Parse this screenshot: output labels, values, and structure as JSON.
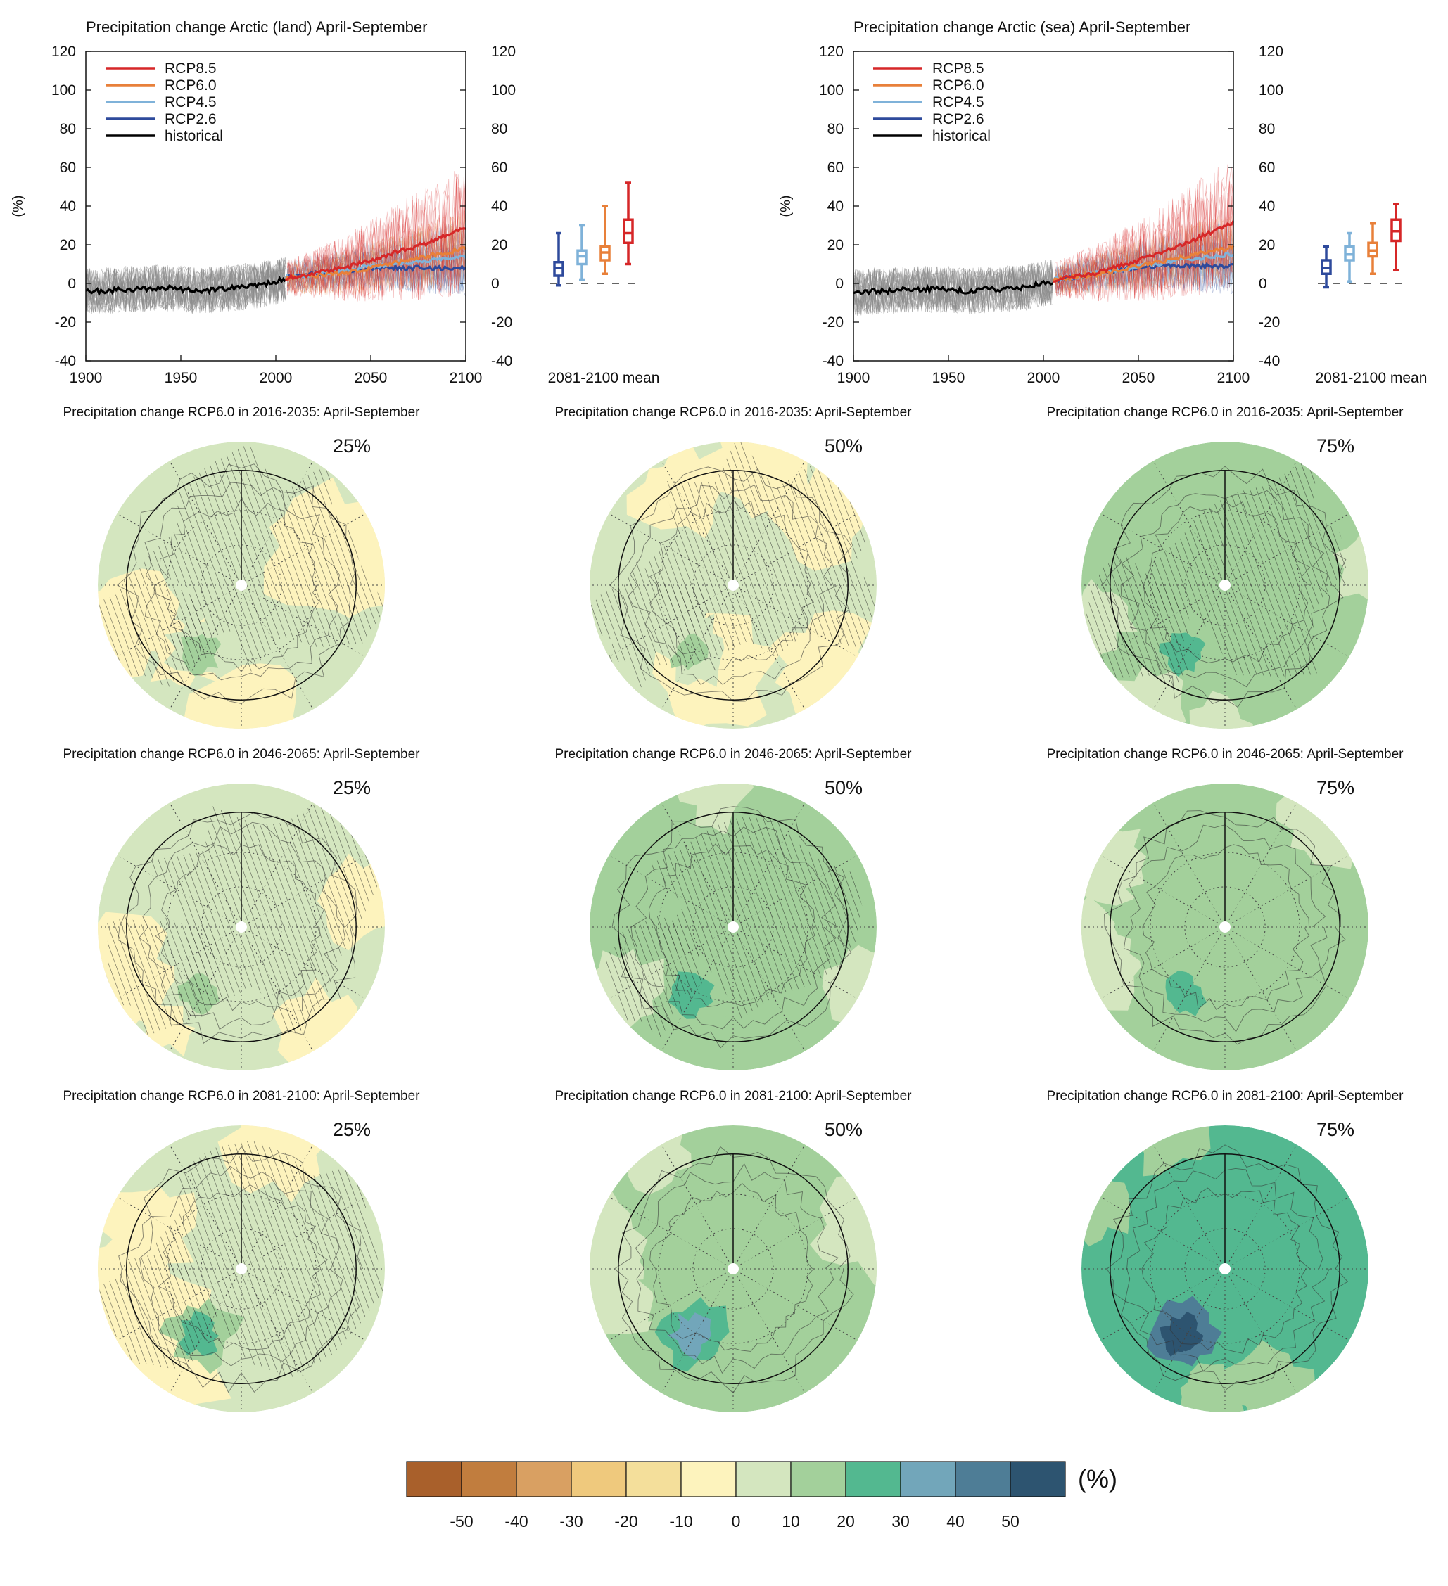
{
  "chart_data": [
    {
      "type": "line",
      "title": "Precipitation change Arctic (land) April-September",
      "ylabel": "(%)",
      "xlim": [
        1900,
        2100
      ],
      "ylim": [
        -40,
        120
      ],
      "x_ticks": [
        1900,
        1950,
        2000,
        2050,
        2100
      ],
      "y_ticks": [
        -40,
        -20,
        0,
        20,
        40,
        60,
        80,
        100,
        120
      ],
      "legend_position": "top-left",
      "series": [
        {
          "name": "RCP8.5",
          "color": "#d62728",
          "x": [
            2006,
            2020,
            2030,
            2040,
            2050,
            2060,
            2070,
            2080,
            2090,
            2100
          ],
          "values": [
            3,
            5,
            7,
            9,
            12,
            15,
            18,
            21,
            25,
            29
          ]
        },
        {
          "name": "RCP6.0",
          "color": "#e8803a",
          "x": [
            2006,
            2020,
            2030,
            2040,
            2050,
            2060,
            2070,
            2080,
            2090,
            2100
          ],
          "values": [
            3,
            4,
            5,
            6,
            8,
            10,
            12,
            14,
            16,
            18
          ]
        },
        {
          "name": "RCP4.5",
          "color": "#7fb2d9",
          "x": [
            2006,
            2020,
            2030,
            2040,
            2050,
            2060,
            2070,
            2080,
            2090,
            2100
          ],
          "values": [
            3,
            5,
            6,
            7,
            9,
            10,
            11,
            12,
            13,
            14
          ]
        },
        {
          "name": "RCP2.6",
          "color": "#2e4a9c",
          "x": [
            2006,
            2020,
            2030,
            2040,
            2050,
            2060,
            2070,
            2080,
            2090,
            2100
          ],
          "values": [
            3,
            5,
            6,
            7,
            8,
            8,
            8,
            8,
            8,
            8
          ]
        },
        {
          "name": "historical",
          "color": "#000000",
          "x": [
            1900,
            1910,
            1920,
            1930,
            1940,
            1950,
            1960,
            1970,
            1980,
            1990,
            2000,
            2005
          ],
          "values": [
            -4,
            -4,
            -3,
            -3,
            -2,
            -3,
            -4,
            -3,
            -2,
            -1,
            1,
            2
          ]
        }
      ],
      "box_panel_label": "2081-2100 mean",
      "boxes": [
        {
          "name": "RCP2.6",
          "color": "#2e4a9c",
          "min": -1,
          "q1": 4,
          "median": 8,
          "q3": 11,
          "max": 26
        },
        {
          "name": "RCP4.5",
          "color": "#7fb2d9",
          "min": 2,
          "q1": 10,
          "median": 14,
          "q3": 17,
          "max": 30
        },
        {
          "name": "RCP6.0",
          "color": "#e8803a",
          "min": 5,
          "q1": 12,
          "median": 16,
          "q3": 19,
          "max": 40
        },
        {
          "name": "RCP8.5",
          "color": "#d62728",
          "min": 10,
          "q1": 21,
          "median": 26,
          "q3": 33,
          "max": 52
        }
      ]
    },
    {
      "type": "line",
      "title": "Precipitation change Arctic (sea) April-September",
      "ylabel": "(%)",
      "xlim": [
        1900,
        2100
      ],
      "ylim": [
        -40,
        120
      ],
      "x_ticks": [
        1900,
        1950,
        2000,
        2050,
        2100
      ],
      "y_ticks": [
        -40,
        -20,
        0,
        20,
        40,
        60,
        80,
        100,
        120
      ],
      "legend_position": "top-left",
      "series": [
        {
          "name": "RCP8.5",
          "color": "#d62728",
          "x": [
            2006,
            2020,
            2030,
            2040,
            2050,
            2060,
            2070,
            2080,
            2090,
            2100
          ],
          "values": [
            2,
            4,
            6,
            9,
            12,
            15,
            19,
            23,
            27,
            32
          ]
        },
        {
          "name": "RCP6.0",
          "color": "#e8803a",
          "x": [
            2006,
            2020,
            2030,
            2040,
            2050,
            2060,
            2070,
            2080,
            2090,
            2100
          ],
          "values": [
            2,
            4,
            5,
            7,
            9,
            11,
            13,
            15,
            17,
            19
          ]
        },
        {
          "name": "RCP4.5",
          "color": "#7fb2d9",
          "x": [
            2006,
            2020,
            2030,
            2040,
            2050,
            2060,
            2070,
            2080,
            2090,
            2100
          ],
          "values": [
            2,
            4,
            6,
            7,
            9,
            10,
            12,
            13,
            14,
            15
          ]
        },
        {
          "name": "RCP2.6",
          "color": "#2e4a9c",
          "x": [
            2006,
            2020,
            2030,
            2040,
            2050,
            2060,
            2070,
            2080,
            2090,
            2100
          ],
          "values": [
            2,
            4,
            6,
            7,
            8,
            9,
            9,
            9,
            9,
            9
          ]
        },
        {
          "name": "historical",
          "color": "#000000",
          "x": [
            1900,
            1910,
            1920,
            1930,
            1940,
            1950,
            1960,
            1970,
            1980,
            1990,
            2000,
            2005
          ],
          "values": [
            -5,
            -4,
            -4,
            -3,
            -3,
            -3,
            -4,
            -3,
            -3,
            -2,
            0,
            1
          ]
        }
      ],
      "box_panel_label": "2081-2100 mean",
      "boxes": [
        {
          "name": "RCP2.6",
          "color": "#2e4a9c",
          "min": -2,
          "q1": 5,
          "median": 8,
          "q3": 12,
          "max": 19
        },
        {
          "name": "RCP4.5",
          "color": "#7fb2d9",
          "min": 1,
          "q1": 12,
          "median": 15,
          "q3": 19,
          "max": 26
        },
        {
          "name": "RCP6.0",
          "color": "#e8803a",
          "min": 5,
          "q1": 14,
          "median": 17,
          "q3": 21,
          "max": 31
        },
        {
          "name": "RCP8.5",
          "color": "#d62728",
          "min": 7,
          "q1": 22,
          "median": 27,
          "q3": 33,
          "max": 41
        }
      ]
    },
    {
      "type": "heatmap",
      "rows": [
        {
          "title": "Precipitation change RCP6.0 in 2016-2035: April-September",
          "panels": [
            {
              "percentile": "25%",
              "base_value": 5,
              "greenland_value": 15,
              "hatched": true,
              "negative_regions": true
            },
            {
              "percentile": "50%",
              "base_value": 8,
              "greenland_value": 15,
              "hatched": true,
              "negative_regions": true
            },
            {
              "percentile": "75%",
              "base_value": 15,
              "greenland_value": 20,
              "hatched": true,
              "negative_regions": false
            }
          ]
        },
        {
          "title": "Precipitation change RCP6.0 in 2046-2065: April-September",
          "panels": [
            {
              "percentile": "25%",
              "base_value": 5,
              "greenland_value": 15,
              "hatched": true,
              "negative_regions": true
            },
            {
              "percentile": "50%",
              "base_value": 12,
              "greenland_value": 22,
              "hatched": true,
              "negative_regions": false
            },
            {
              "percentile": "75%",
              "base_value": 15,
              "greenland_value": 25,
              "hatched": false,
              "negative_regions": false
            }
          ]
        },
        {
          "title": "Precipitation change RCP6.0 in 2081-2100: April-September",
          "panels": [
            {
              "percentile": "25%",
              "base_value": 8,
              "greenland_value": 28,
              "hatched": true,
              "negative_regions": true
            },
            {
              "percentile": "50%",
              "base_value": 18,
              "greenland_value": 38,
              "hatched": false,
              "negative_regions": false
            },
            {
              "percentile": "75%",
              "base_value": 25,
              "greenland_value": 55,
              "hatched": false,
              "negative_regions": false
            }
          ]
        }
      ]
    }
  ],
  "colorbar": {
    "unit": "(%)",
    "tick_labels": [
      "-50",
      "-40",
      "-30",
      "-20",
      "-10",
      "0",
      "10",
      "20",
      "30",
      "40",
      "50"
    ],
    "colors": [
      "#a9602b",
      "#c17d3e",
      "#d9a062",
      "#efc97d",
      "#f4df9b",
      "#fdf3bd",
      "#d4e6bf",
      "#a3d09b",
      "#53b890",
      "#72a6ba",
      "#4e7d96",
      "#2d5470"
    ]
  }
}
